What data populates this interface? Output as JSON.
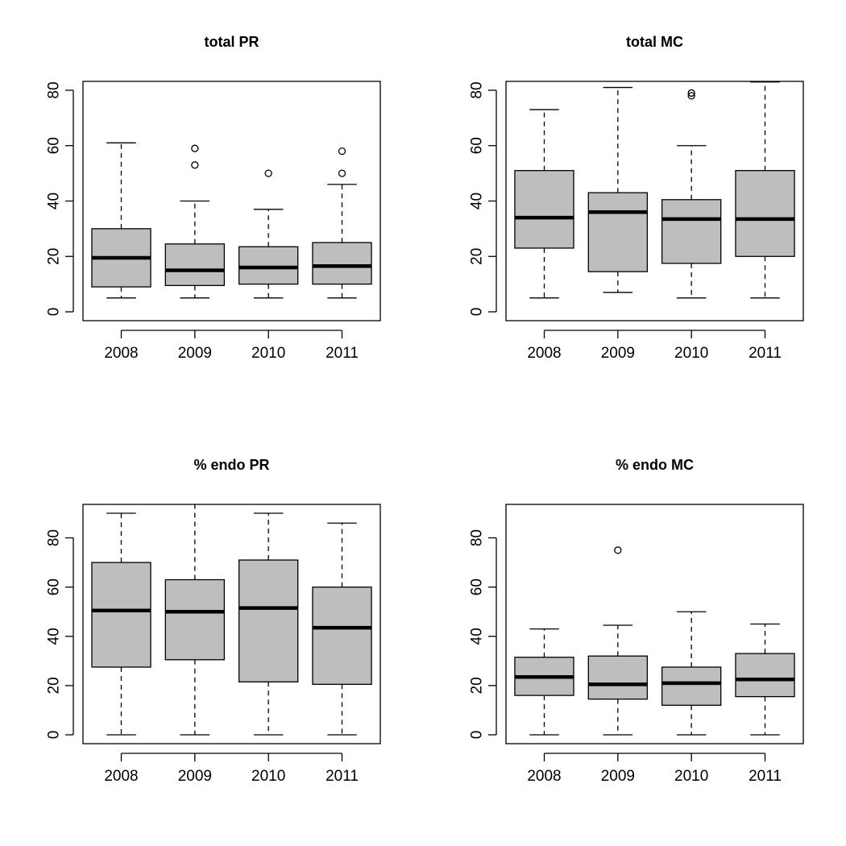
{
  "chart_data": [
    {
      "type": "boxplot",
      "title": "total PR",
      "categories": [
        "2008",
        "2009",
        "2010",
        "2011"
      ],
      "ylim": [
        0,
        80
      ],
      "yticks": [
        "0",
        "20",
        "40",
        "60",
        "80"
      ],
      "box_color": "#bebebe",
      "boxes": [
        {
          "category": "2008",
          "whisker_low": 5,
          "q1": 9,
          "median": 19.5,
          "q3": 30,
          "whisker_high": 61,
          "outliers": []
        },
        {
          "category": "2009",
          "whisker_low": 5,
          "q1": 9.5,
          "median": 15,
          "q3": 24.5,
          "whisker_high": 40,
          "outliers": [
            53,
            59
          ]
        },
        {
          "category": "2010",
          "whisker_low": 5,
          "q1": 10,
          "median": 16,
          "q3": 23.5,
          "whisker_high": 37,
          "outliers": [
            50
          ]
        },
        {
          "category": "2011",
          "whisker_low": 5,
          "q1": 10,
          "median": 16.5,
          "q3": 25,
          "whisker_high": 46,
          "outliers": [
            50,
            58
          ]
        }
      ]
    },
    {
      "type": "boxplot",
      "title": "total MC",
      "categories": [
        "2008",
        "2009",
        "2010",
        "2011"
      ],
      "ylim": [
        0,
        80
      ],
      "yticks": [
        "0",
        "20",
        "40",
        "60",
        "80"
      ],
      "box_color": "#bebebe",
      "boxes": [
        {
          "category": "2008",
          "whisker_low": 5,
          "q1": 23,
          "median": 34,
          "q3": 51,
          "whisker_high": 73,
          "outliers": []
        },
        {
          "category": "2009",
          "whisker_low": 7,
          "q1": 14.5,
          "median": 36,
          "q3": 43,
          "whisker_high": 81,
          "outliers": []
        },
        {
          "category": "2010",
          "whisker_low": 5,
          "q1": 17.5,
          "median": 33.5,
          "q3": 40.5,
          "whisker_high": 60,
          "outliers": [
            78,
            79
          ]
        },
        {
          "category": "2011",
          "whisker_low": 5,
          "q1": 20,
          "median": 33.5,
          "q3": 51,
          "whisker_high": 83,
          "outliers": []
        }
      ]
    },
    {
      "type": "boxplot",
      "title": "% endo PR",
      "categories": [
        "2008",
        "2009",
        "2010",
        "2011"
      ],
      "ylim": [
        0,
        90
      ],
      "yticks": [
        "0",
        "20",
        "40",
        "60",
        "80"
      ],
      "box_color": "#bebebe",
      "boxes": [
        {
          "category": "2008",
          "whisker_low": 0,
          "q1": 27.5,
          "median": 50.5,
          "q3": 70,
          "whisker_high": 90,
          "outliers": []
        },
        {
          "category": "2009",
          "whisker_low": 0,
          "q1": 30.5,
          "median": 50,
          "q3": 63,
          "whisker_high": 95,
          "outliers": []
        },
        {
          "category": "2010",
          "whisker_low": 0,
          "q1": 21.5,
          "median": 51.5,
          "q3": 71,
          "whisker_high": 90,
          "outliers": []
        },
        {
          "category": "2011",
          "whisker_low": 0,
          "q1": 20.5,
          "median": 43.5,
          "q3": 60,
          "whisker_high": 86,
          "outliers": []
        }
      ]
    },
    {
      "type": "boxplot",
      "title": "% endo MC",
      "categories": [
        "2008",
        "2009",
        "2010",
        "2011"
      ],
      "ylim": [
        0,
        90
      ],
      "yticks": [
        "0",
        "20",
        "40",
        "60",
        "80"
      ],
      "box_color": "#bebebe",
      "boxes": [
        {
          "category": "2008",
          "whisker_low": 0,
          "q1": 16,
          "median": 23.5,
          "q3": 31.5,
          "whisker_high": 43,
          "outliers": []
        },
        {
          "category": "2009",
          "whisker_low": 0,
          "q1": 14.5,
          "median": 20.5,
          "q3": 32,
          "whisker_high": 44.5,
          "outliers": [
            75
          ]
        },
        {
          "category": "2010",
          "whisker_low": 0,
          "q1": 12,
          "median": 21,
          "q3": 27.5,
          "whisker_high": 50,
          "outliers": []
        },
        {
          "category": "2011",
          "whisker_low": 0,
          "q1": 15.5,
          "median": 22.5,
          "q3": 33,
          "whisker_high": 45,
          "outliers": []
        }
      ]
    }
  ]
}
